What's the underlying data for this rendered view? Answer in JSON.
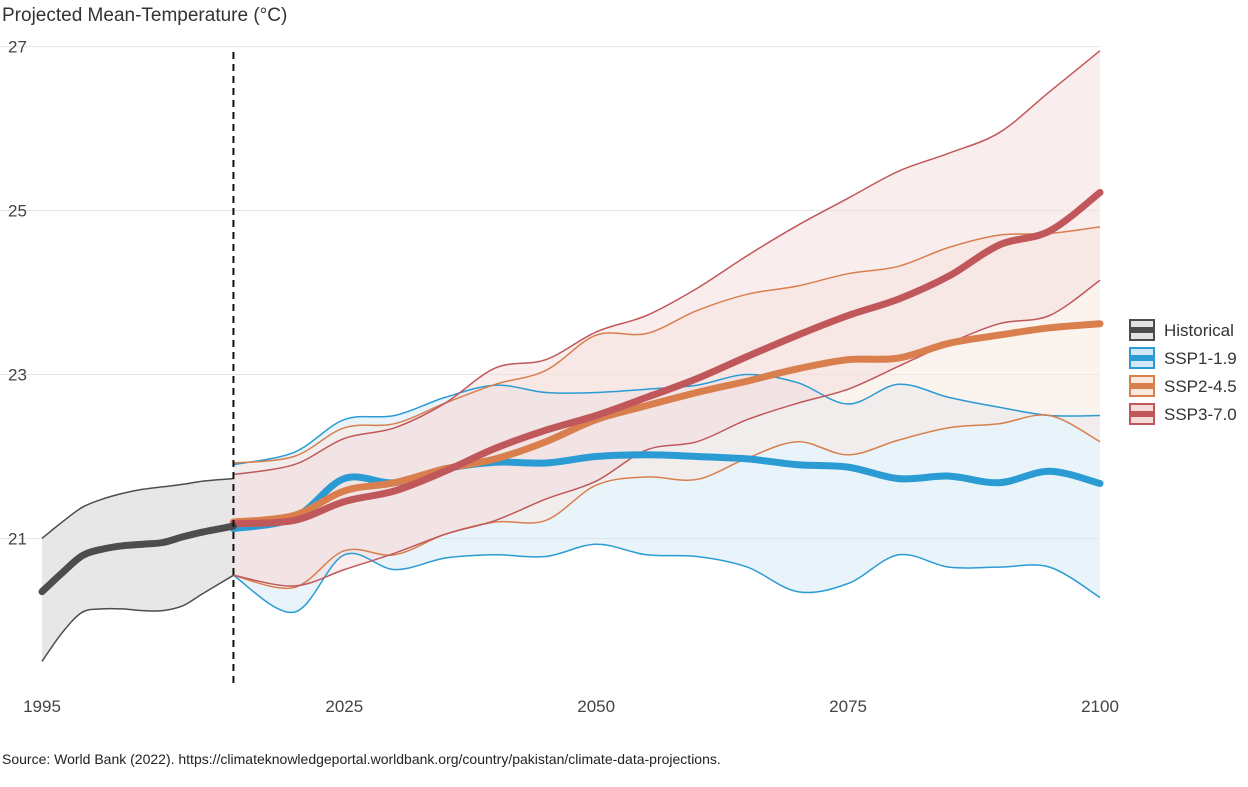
{
  "chart_data": {
    "type": "line",
    "title": "Projected Mean-Temperature (°C)",
    "source": "Source: World Bank (2022). https://climateknowledgeportal.worldbank.org/country/pakistan/climate-data-projections.",
    "xlabel": "",
    "ylabel": "",
    "xlim": [
      1995,
      2100
    ],
    "ylim": [
      19.2,
      27.3
    ],
    "x_ticks": [
      1995,
      2025,
      2050,
      2075,
      2100
    ],
    "y_ticks": [
      21,
      23,
      25,
      27
    ],
    "grid": true,
    "vertical_marker_year": 2014,
    "legend": {
      "placement": "right"
    },
    "series": [
      {
        "name": "Historical",
        "color": "#4d4d4d",
        "fill": "#e3e3e3",
        "x": [
          1995,
          1997,
          1999,
          2001,
          2003,
          2005,
          2007,
          2009,
          2011,
          2014
        ],
        "mean": [
          20.35,
          20.58,
          20.79,
          20.87,
          20.91,
          20.93,
          20.95,
          21.02,
          21.08,
          21.15
        ],
        "upper": [
          21.0,
          21.2,
          21.38,
          21.48,
          21.55,
          21.6,
          21.63,
          21.66,
          21.7,
          21.73
        ],
        "lower": [
          19.5,
          19.85,
          20.1,
          20.14,
          20.14,
          20.12,
          20.12,
          20.18,
          20.33,
          20.55
        ]
      },
      {
        "name": "SSP1-1.9",
        "color": "#2b9bd3",
        "fill": "#d2e8f5",
        "x": [
          2014,
          2020,
          2025,
          2030,
          2035,
          2040,
          2045,
          2050,
          2055,
          2060,
          2065,
          2070,
          2075,
          2080,
          2085,
          2090,
          2095,
          2100
        ],
        "mean": [
          21.12,
          21.25,
          21.73,
          21.68,
          21.85,
          21.93,
          21.92,
          22.0,
          22.02,
          22.0,
          21.97,
          21.9,
          21.87,
          21.73,
          21.76,
          21.68,
          21.82,
          21.67
        ],
        "upper": [
          21.9,
          22.05,
          22.45,
          22.5,
          22.72,
          22.87,
          22.78,
          22.78,
          22.82,
          22.87,
          23.0,
          22.9,
          22.64,
          22.88,
          22.72,
          22.6,
          22.5,
          22.5
        ],
        "lower": [
          20.55,
          20.1,
          20.8,
          20.62,
          20.76,
          20.8,
          20.78,
          20.93,
          20.8,
          20.78,
          20.65,
          20.35,
          20.45,
          20.8,
          20.65,
          20.65,
          20.65,
          20.28
        ]
      },
      {
        "name": "SSP2-4.5",
        "color": "#d97f4e",
        "fill": "#f8e8dd",
        "x": [
          2014,
          2020,
          2025,
          2030,
          2035,
          2040,
          2045,
          2050,
          2055,
          2060,
          2065,
          2070,
          2075,
          2080,
          2085,
          2090,
          2095,
          2100
        ],
        "mean": [
          21.2,
          21.28,
          21.58,
          21.68,
          21.85,
          21.97,
          22.18,
          22.45,
          22.62,
          22.78,
          22.92,
          23.07,
          23.18,
          23.2,
          23.38,
          23.48,
          23.57,
          23.62
        ],
        "upper": [
          21.92,
          22.0,
          22.35,
          22.4,
          22.65,
          22.88,
          23.05,
          23.48,
          23.5,
          23.78,
          23.98,
          24.08,
          24.23,
          24.32,
          24.55,
          24.7,
          24.72,
          24.8
        ],
        "lower": [
          20.55,
          20.4,
          20.85,
          20.8,
          21.05,
          21.2,
          21.22,
          21.65,
          21.75,
          21.72,
          21.98,
          22.18,
          22.02,
          22.2,
          22.35,
          22.4,
          22.5,
          22.18
        ]
      },
      {
        "name": "SSP3-7.0",
        "color": "#c0575a",
        "fill": "#f4dcdb",
        "x": [
          2014,
          2020,
          2025,
          2030,
          2035,
          2040,
          2045,
          2050,
          2055,
          2060,
          2065,
          2070,
          2075,
          2080,
          2085,
          2090,
          2095,
          2100
        ],
        "mean": [
          21.18,
          21.22,
          21.45,
          21.58,
          21.82,
          22.1,
          22.32,
          22.5,
          22.72,
          22.95,
          23.22,
          23.48,
          23.72,
          23.92,
          24.2,
          24.58,
          24.75,
          25.22
        ],
        "upper": [
          21.78,
          21.9,
          22.22,
          22.35,
          22.65,
          23.08,
          23.18,
          23.52,
          23.72,
          24.05,
          24.45,
          24.82,
          25.15,
          25.48,
          25.7,
          25.95,
          26.45,
          26.95
        ],
        "lower": [
          20.55,
          20.42,
          20.62,
          20.82,
          21.05,
          21.22,
          21.48,
          21.7,
          22.08,
          22.18,
          22.45,
          22.65,
          22.82,
          23.1,
          23.38,
          23.62,
          23.72,
          24.15
        ]
      }
    ]
  }
}
